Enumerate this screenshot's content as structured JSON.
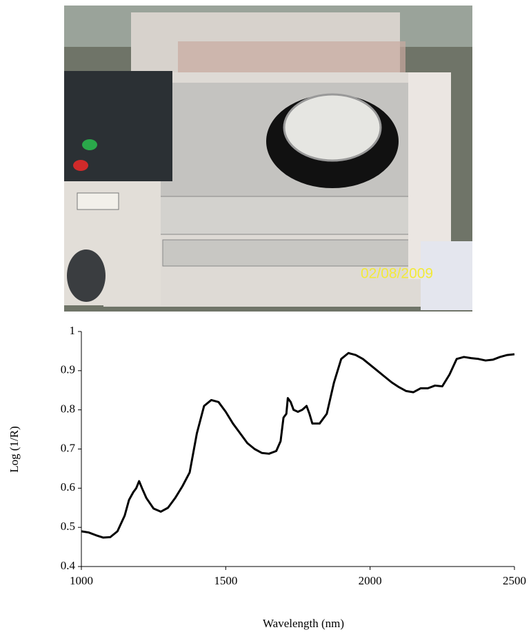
{
  "photo": {
    "date_stamp": "02/08/2009"
  },
  "chart_data": {
    "type": "line",
    "x_label": "Wavelength (nm)",
    "y_label": "Log (1/R)",
    "x": [
      1000,
      1025,
      1050,
      1075,
      1100,
      1125,
      1150,
      1165,
      1180,
      1190,
      1200,
      1210,
      1225,
      1250,
      1275,
      1300,
      1325,
      1350,
      1375,
      1400,
      1425,
      1450,
      1475,
      1500,
      1525,
      1550,
      1575,
      1600,
      1625,
      1650,
      1675,
      1690,
      1700,
      1710,
      1715,
      1725,
      1735,
      1750,
      1765,
      1780,
      1790,
      1800,
      1825,
      1850,
      1875,
      1900,
      1925,
      1950,
      1975,
      2000,
      2025,
      2050,
      2075,
      2100,
      2125,
      2150,
      2175,
      2200,
      2225,
      2250,
      2275,
      2300,
      2325,
      2350,
      2375,
      2400,
      2425,
      2450,
      2475,
      2500
    ],
    "series": [
      {
        "color": "#000000",
        "values": [
          0.49,
          0.487,
          0.48,
          0.474,
          0.475,
          0.49,
          0.53,
          0.57,
          0.59,
          0.6,
          0.618,
          0.6,
          0.575,
          0.548,
          0.54,
          0.55,
          0.575,
          0.605,
          0.64,
          0.74,
          0.81,
          0.825,
          0.82,
          0.795,
          0.765,
          0.74,
          0.715,
          0.7,
          0.69,
          0.688,
          0.695,
          0.72,
          0.78,
          0.79,
          0.83,
          0.82,
          0.8,
          0.795,
          0.8,
          0.81,
          0.79,
          0.765,
          0.765,
          0.79,
          0.87,
          0.93,
          0.945,
          0.94,
          0.93,
          0.915,
          0.9,
          0.885,
          0.87,
          0.858,
          0.848,
          0.845,
          0.855,
          0.855,
          0.862,
          0.86,
          0.89,
          0.93,
          0.935,
          0.932,
          0.93,
          0.926,
          0.928,
          0.935,
          0.94,
          0.942
        ]
      }
    ],
    "xlim": [
      1000,
      2500
    ],
    "xticks": [
      1000,
      1500,
      2000,
      2500
    ],
    "ylim": [
      0.4,
      1
    ],
    "yticks": [
      0.4,
      0.5,
      0.6,
      0.7,
      0.8,
      0.9,
      1
    ],
    "grid": false
  }
}
